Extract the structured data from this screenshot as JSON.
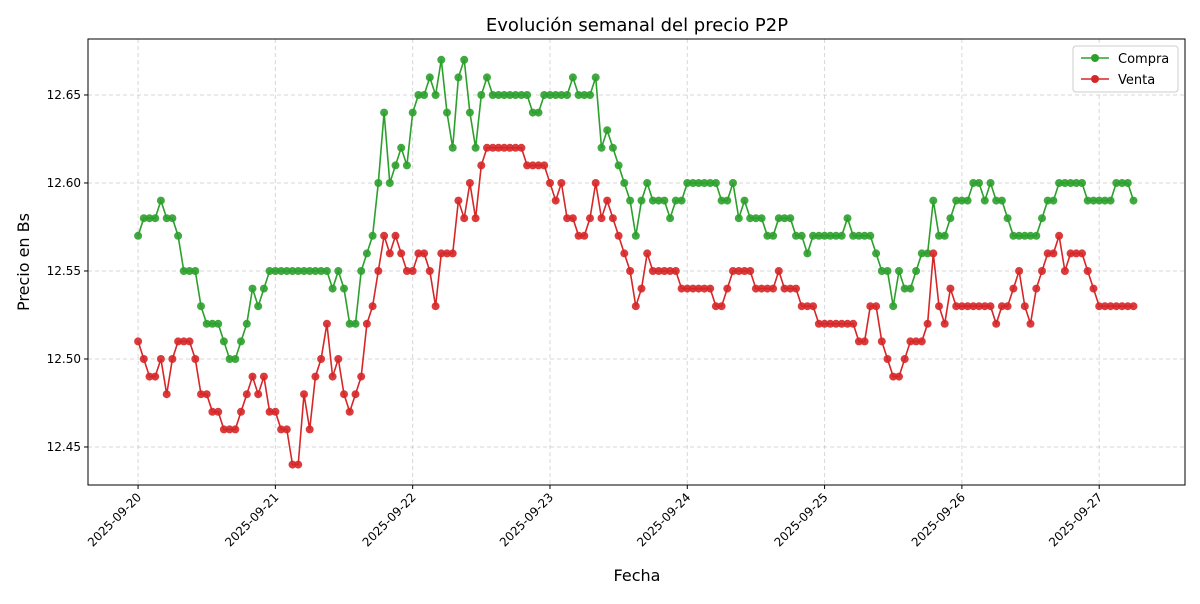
{
  "chart_data": {
    "type": "line",
    "title": "Evolución semanal del precio P2P",
    "xlabel": "Fecha",
    "ylabel": "Precio en Bs",
    "xlim": [
      "2025-09-19T15:15",
      "2025-09-27T15:00"
    ],
    "ylim": [
      12.4284,
      12.6818
    ],
    "x_ticks": [
      "2025-09-20",
      "2025-09-21",
      "2025-09-22",
      "2025-09-23",
      "2025-09-24",
      "2025-09-25",
      "2025-09-26",
      "2025-09-27"
    ],
    "y_ticks": [
      "12.45",
      "12.50",
      "12.55",
      "12.60",
      "12.65"
    ],
    "grid": true,
    "legend_position": "top-right",
    "markers": "circle",
    "sampling": "hourly",
    "series": [
      {
        "name": "Compra",
        "color": "#2ca02c",
        "days": [
          {
            "date": "2025-09-20",
            "hours": [
              12.57,
              12.58,
              12.58,
              12.58,
              12.59,
              12.58,
              12.58,
              12.57,
              12.55,
              12.55,
              12.55,
              12.53,
              12.52,
              12.52,
              12.52,
              12.51,
              12.5,
              12.5,
              12.51,
              12.52,
              12.54,
              12.53,
              12.54,
              12.55
            ]
          },
          {
            "date": "2025-09-21",
            "hours": [
              12.55,
              12.55,
              12.55,
              12.55,
              12.55,
              12.55,
              12.55,
              12.55,
              12.55,
              12.55,
              12.54,
              12.55,
              12.54,
              12.52,
              12.52,
              12.55,
              12.56,
              12.57,
              12.6,
              12.64,
              12.6,
              12.61,
              12.62,
              12.61
            ]
          },
          {
            "date": "2025-09-22",
            "hours": [
              12.64,
              12.65,
              12.65,
              12.66,
              12.65,
              12.67,
              12.64,
              12.62,
              12.66,
              12.67,
              12.64,
              12.62,
              12.65,
              12.66,
              12.65,
              12.65,
              12.65,
              12.65,
              12.65,
              12.65,
              12.65,
              12.64,
              12.64,
              12.65
            ]
          },
          {
            "date": "2025-09-23",
            "hours": [
              12.65,
              12.65,
              12.65,
              12.65,
              12.66,
              12.65,
              12.65,
              12.65,
              12.66,
              12.62,
              12.63,
              12.62,
              12.61,
              12.6,
              12.59,
              12.57,
              12.59,
              12.6,
              12.59,
              12.59,
              12.59,
              12.58,
              12.59,
              12.59
            ]
          },
          {
            "date": "2025-09-24",
            "hours": [
              12.6,
              12.6,
              12.6,
              12.6,
              12.6,
              12.6,
              12.59,
              12.59,
              12.6,
              12.58,
              12.59,
              12.58,
              12.58,
              12.58,
              12.57,
              12.57,
              12.58,
              12.58,
              12.58,
              12.57,
              12.57,
              12.56,
              12.57,
              12.57
            ]
          },
          {
            "date": "2025-09-25",
            "hours": [
              12.57,
              12.57,
              12.57,
              12.57,
              12.58,
              12.57,
              12.57,
              12.57,
              12.57,
              12.56,
              12.55,
              12.55,
              12.53,
              12.55,
              12.54,
              12.54,
              12.55,
              12.56,
              12.56,
              12.59,
              12.57,
              12.57,
              12.58,
              12.59
            ]
          },
          {
            "date": "2025-09-26",
            "hours": [
              12.59,
              12.59,
              12.6,
              12.6,
              12.59,
              12.6,
              12.59,
              12.59,
              12.58,
              12.57,
              12.57,
              12.57,
              12.57,
              12.57,
              12.58,
              12.59,
              12.59,
              12.6,
              12.6,
              12.6,
              12.6,
              12.6,
              12.59,
              12.59
            ]
          },
          {
            "date": "2025-09-27",
            "hours": [
              12.59,
              12.59,
              12.59,
              12.6,
              12.6,
              12.6,
              12.59
            ]
          }
        ]
      },
      {
        "name": "Venta",
        "color": "#d62728",
        "days": [
          {
            "date": "2025-09-20",
            "hours": [
              12.51,
              12.5,
              12.49,
              12.49,
              12.5,
              12.48,
              12.5,
              12.51,
              12.51,
              12.51,
              12.5,
              12.48,
              12.48,
              12.47,
              12.47,
              12.46,
              12.46,
              12.46,
              12.47,
              12.48,
              12.49,
              12.48,
              12.49,
              12.47
            ]
          },
          {
            "date": "2025-09-21",
            "hours": [
              12.47,
              12.46,
              12.46,
              12.44,
              12.44,
              12.48,
              12.46,
              12.49,
              12.5,
              12.52,
              12.49,
              12.5,
              12.48,
              12.47,
              12.48,
              12.49,
              12.52,
              12.53,
              12.55,
              12.57,
              12.56,
              12.57,
              12.56,
              12.55
            ]
          },
          {
            "date": "2025-09-22",
            "hours": [
              12.55,
              12.56,
              12.56,
              12.55,
              12.53,
              12.56,
              12.56,
              12.56,
              12.59,
              12.58,
              12.6,
              12.58,
              12.61,
              12.62,
              12.62,
              12.62,
              12.62,
              12.62,
              12.62,
              12.62,
              12.61,
              12.61,
              12.61,
              12.61
            ]
          },
          {
            "date": "2025-09-23",
            "hours": [
              12.6,
              12.59,
              12.6,
              12.58,
              12.58,
              12.57,
              12.57,
              12.58,
              12.6,
              12.58,
              12.59,
              12.58,
              12.57,
              12.56,
              12.55,
              12.53,
              12.54,
              12.56,
              12.55,
              12.55,
              12.55,
              12.55,
              12.55,
              12.54
            ]
          },
          {
            "date": "2025-09-24",
            "hours": [
              12.54,
              12.54,
              12.54,
              12.54,
              12.54,
              12.53,
              12.53,
              12.54,
              12.55,
              12.55,
              12.55,
              12.55,
              12.54,
              12.54,
              12.54,
              12.54,
              12.55,
              12.54,
              12.54,
              12.54,
              12.53,
              12.53,
              12.53,
              12.52
            ]
          },
          {
            "date": "2025-09-25",
            "hours": [
              12.52,
              12.52,
              12.52,
              12.52,
              12.52,
              12.52,
              12.51,
              12.51,
              12.53,
              12.53,
              12.51,
              12.5,
              12.49,
              12.49,
              12.5,
              12.51,
              12.51,
              12.51,
              12.52,
              12.56,
              12.53,
              12.52,
              12.54,
              12.53
            ]
          },
          {
            "date": "2025-09-26",
            "hours": [
              12.53,
              12.53,
              12.53,
              12.53,
              12.53,
              12.53,
              12.52,
              12.53,
              12.53,
              12.54,
              12.55,
              12.53,
              12.52,
              12.54,
              12.55,
              12.56,
              12.56,
              12.57,
              12.55,
              12.56,
              12.56,
              12.56,
              12.55,
              12.54
            ]
          },
          {
            "date": "2025-09-27",
            "hours": [
              12.53,
              12.53,
              12.53,
              12.53,
              12.53,
              12.53,
              12.53
            ]
          }
        ]
      }
    ]
  }
}
